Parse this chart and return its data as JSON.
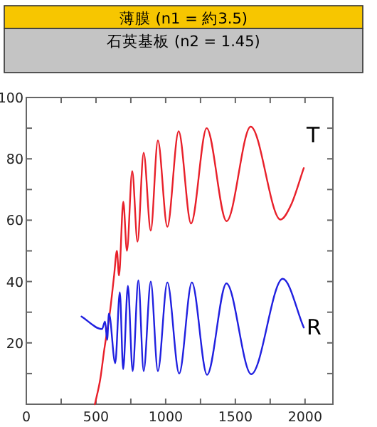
{
  "chart_data": {
    "type": "line",
    "annotations": [
      "薄膜 (n1 = 約3.5)",
      "石英基板 (n2 = 1.45)"
    ],
    "xlim": [
      0,
      2200
    ],
    "ylim": [
      0,
      100
    ],
    "xticks": [
      0,
      {
        "value": 250,
        "label": null
      },
      500,
      {
        "value": 750,
        "label": null
      },
      1000,
      {
        "value": 1250,
        "label": null
      },
      1500,
      {
        "value": 1750,
        "label": null
      },
      2000
    ],
    "yticks": [
      {
        "value": 10,
        "label": null
      },
      20,
      {
        "value": 30,
        "label": null
      },
      40,
      {
        "value": 50,
        "label": null
      },
      60,
      {
        "value": 70,
        "label": null
      },
      80,
      {
        "value": 90,
        "label": null
      },
      100
    ],
    "grid": false,
    "marker": "none",
    "line_style": "solid",
    "series": [
      {
        "name": "T",
        "color": "#e8202a",
        "x": [
          492,
          530,
          560,
          600,
          630,
          650,
          665,
          696,
          722,
          760,
          798,
          842,
          893,
          944,
          1012,
          1093,
          1182,
          1294,
          1437,
          1610,
          1824,
          1900,
          1991
        ],
        "values": [
          0,
          8,
          18,
          30,
          42,
          50,
          42,
          66,
          50,
          76,
          53,
          82,
          56.6,
          86,
          57.9,
          89,
          58.9,
          90,
          59.7,
          90.5,
          60.2,
          65,
          77
        ]
      },
      {
        "name": "R",
        "color": "#2020e0",
        "x": [
          396,
          543,
          565,
          580,
          593,
          638,
          671,
          695,
          729,
          763,
          804,
          842,
          893,
          944,
          1012,
          1097,
          1188,
          1297,
          1436,
          1614,
          1840,
          1991
        ],
        "values": [
          28.6,
          24.5,
          27,
          21,
          29.6,
          13.4,
          36.5,
          11.4,
          38.6,
          10.8,
          40.4,
          10.8,
          40,
          10.8,
          39.7,
          10,
          39.7,
          9.6,
          39.4,
          9.8,
          40.9,
          25
        ]
      }
    ]
  }
}
